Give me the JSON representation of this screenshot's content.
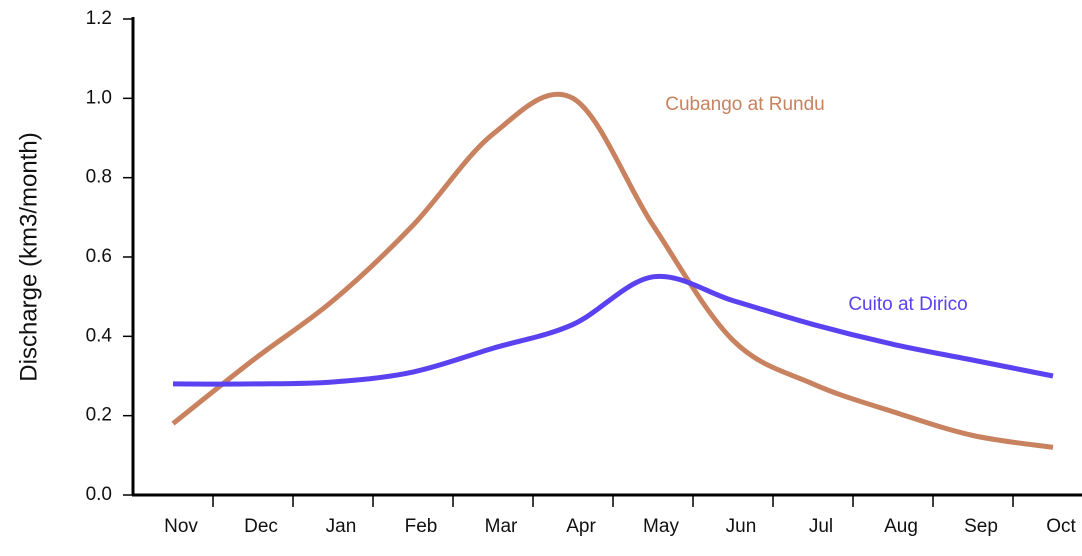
{
  "chart_data": {
    "type": "line",
    "ylabel": "Discharge (km3/month)",
    "categories": [
      "Nov",
      "Dec",
      "Jan",
      "Feb",
      "Mar",
      "Apr",
      "May",
      "Jun",
      "Jul",
      "Aug",
      "Sep",
      "Oct"
    ],
    "series": [
      {
        "name": "Cubango at Rundu",
        "color": "#c8825f",
        "values": [
          0.18,
          0.34,
          0.49,
          0.68,
          0.91,
          1.0,
          0.68,
          0.39,
          0.28,
          0.21,
          0.15,
          0.12
        ]
      },
      {
        "name": "Cuito at Dirico",
        "color": "#5a42f0",
        "values": [
          0.28,
          0.28,
          0.285,
          0.31,
          0.37,
          0.43,
          0.55,
          0.49,
          0.43,
          0.38,
          0.34,
          0.3
        ]
      }
    ],
    "ylim": [
      0,
      1.2
    ],
    "yticks": [
      {
        "value": 0,
        "label": "0.0"
      },
      0.2,
      0.4,
      0.6,
      0.8,
      {
        "value": 1,
        "label": "1.0"
      },
      1.2
    ],
    "grid": false
  }
}
